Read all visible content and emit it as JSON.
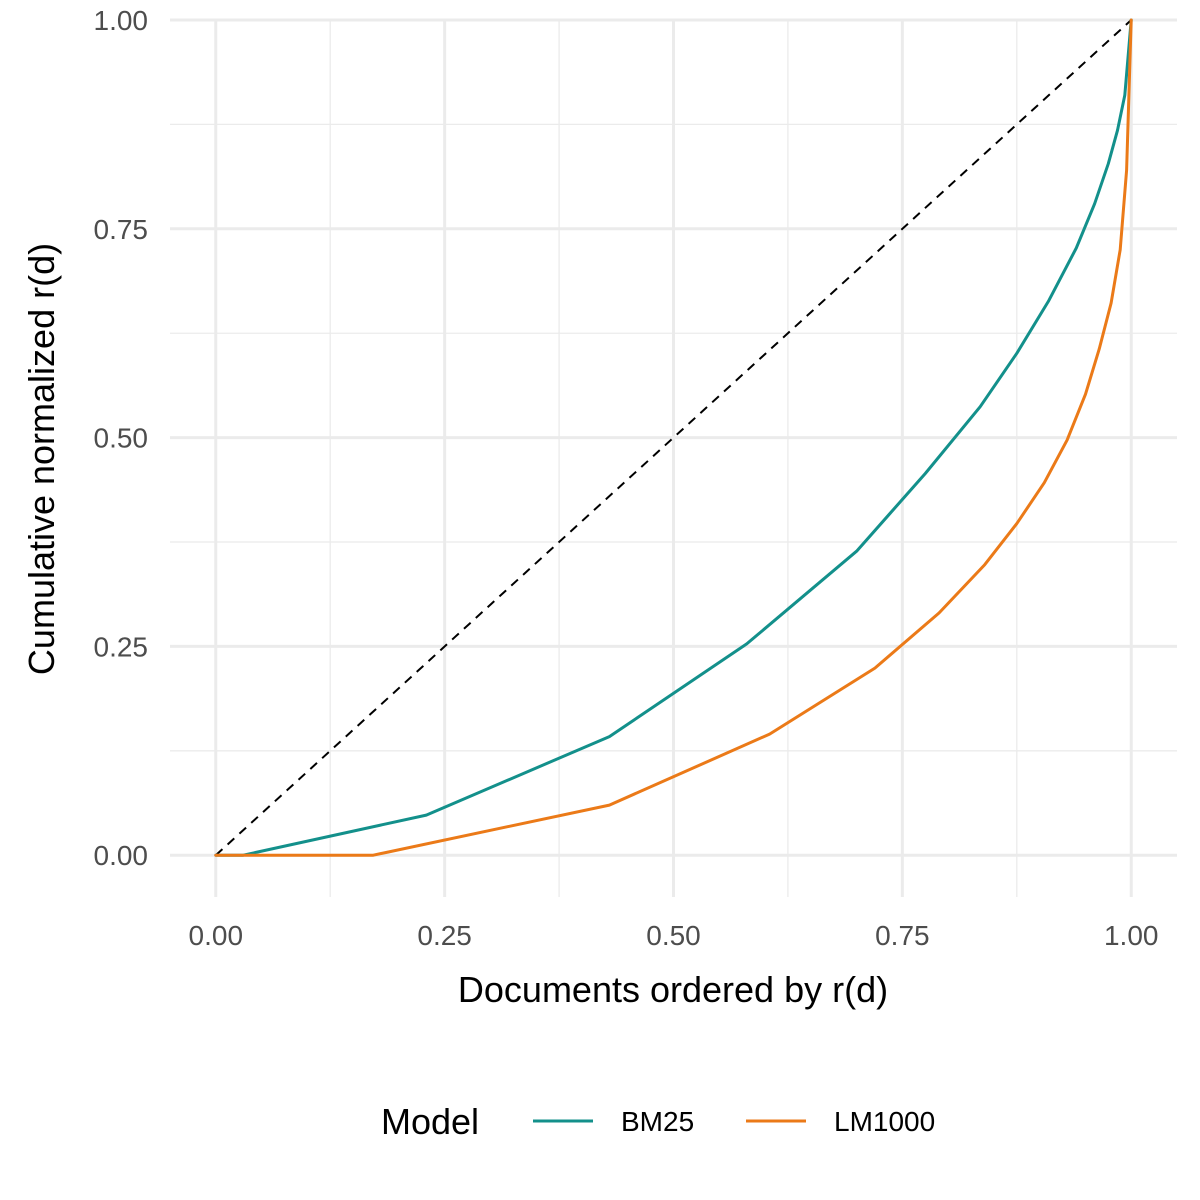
{
  "chart_data": {
    "type": "line",
    "xlabel": "Documents ordered by r(d)",
    "ylabel": "Cumulative normalized r(d)",
    "xlim": [
      -0.05,
      1.05
    ],
    "ylim": [
      -0.05,
      1.0
    ],
    "xticks": [
      0.0,
      0.25,
      0.5,
      0.75,
      1.0
    ],
    "xtick_labels": [
      "0.00",
      "0.25",
      "0.50",
      "0.75",
      "1.00"
    ],
    "yticks": [
      0.0,
      0.25,
      0.5,
      0.75,
      1.0
    ],
    "ytick_labels": [
      "0.00",
      "0.25",
      "0.50",
      "0.75",
      "1.00"
    ],
    "grid": true,
    "legend": {
      "title": "Model",
      "position": "bottom"
    },
    "reference_line": {
      "style": "dashed",
      "color": "#000000",
      "x": [
        0,
        1
      ],
      "y": [
        0,
        1
      ]
    },
    "series": [
      {
        "name": "BM25",
        "color": "#13908B",
        "x": [
          0,
          0.03,
          0.23,
          0.43,
          0.58,
          0.7,
          0.775,
          0.835,
          0.875,
          0.91,
          0.94,
          0.96,
          0.975,
          0.985,
          0.993,
          1.0
        ],
        "y": [
          0,
          0,
          0.048,
          0.142,
          0.253,
          0.364,
          0.457,
          0.537,
          0.601,
          0.664,
          0.727,
          0.78,
          0.828,
          0.868,
          0.91,
          1.0
        ]
      },
      {
        "name": "LM1000",
        "color": "#EB7A18",
        "x": [
          0,
          0.172,
          0.43,
          0.605,
          0.72,
          0.79,
          0.84,
          0.875,
          0.905,
          0.93,
          0.95,
          0.965,
          0.978,
          0.988,
          0.995,
          1.0
        ],
        "y": [
          0,
          0,
          0.06,
          0.145,
          0.224,
          0.29,
          0.348,
          0.397,
          0.446,
          0.497,
          0.552,
          0.606,
          0.661,
          0.725,
          0.82,
          1.0
        ]
      }
    ]
  }
}
